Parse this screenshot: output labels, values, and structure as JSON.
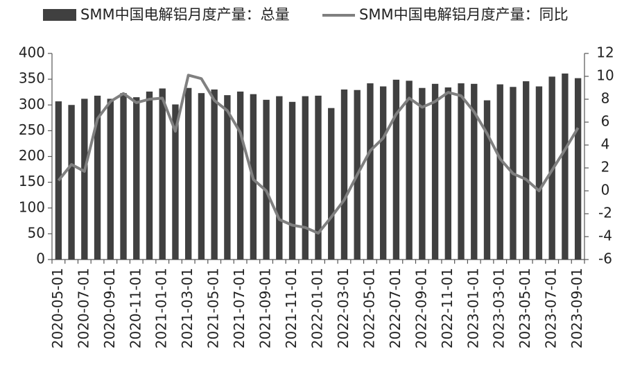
{
  "chart_data": {
    "type": "bar-line",
    "categories": [
      "2020-05-01",
      null,
      "2020-07-01",
      null,
      "2020-09-01",
      null,
      "2020-11-01",
      null,
      "2021-01-01",
      null,
      "2021-03-01",
      null,
      "2021-05-01",
      null,
      "2021-07-01",
      null,
      "2021-09-01",
      null,
      "2021-11-01",
      null,
      "2022-01-01",
      null,
      "2022-03-01",
      null,
      "2022-05-01",
      null,
      "2022-07-01",
      null,
      "2022-09-01",
      null,
      "2022-11-01",
      null,
      "2023-01-01",
      null,
      "2023-03-01",
      null,
      "2023-05-01",
      null,
      "2023-07-01",
      null,
      "2023-09-01"
    ],
    "series": [
      {
        "name": "SMM中国电解铝月度产量：总量",
        "type": "bar",
        "color": "#404040",
        "values": [
          307,
          300,
          312,
          318,
          312,
          323,
          315,
          326,
          332,
          301,
          333,
          323,
          330,
          319,
          326,
          321,
          310,
          317,
          306,
          317,
          318,
          294,
          330,
          329,
          342,
          336,
          349,
          347,
          333,
          341,
          334,
          342,
          341,
          309,
          340,
          335,
          346,
          336,
          355,
          361,
          352
        ]
      },
      {
        "name": "SMM中国电解铝月度产量：同比",
        "type": "line",
        "axis": "y2",
        "color": "#808080",
        "values": [
          0.9,
          2.3,
          1.7,
          6.3,
          7.8,
          8.5,
          7.7,
          8.0,
          8.1,
          5.2,
          10.1,
          9.8,
          7.9,
          7.0,
          5.1,
          1.0,
          0.0,
          -2.5,
          -3.0,
          -3.2,
          -3.7,
          -2.3,
          -0.8,
          1.4,
          3.5,
          4.6,
          6.7,
          8.1,
          7.3,
          7.8,
          8.6,
          8.3,
          6.9,
          5.0,
          2.8,
          1.5,
          1.0,
          0.0,
          1.8,
          3.6,
          5.5
        ]
      }
    ],
    "ylim": [
      0,
      400
    ],
    "yticks": [
      0,
      50,
      100,
      150,
      200,
      250,
      300,
      350,
      400
    ],
    "y2lim": [
      -6,
      12
    ],
    "y2ticks": [
      -6,
      -4,
      -2,
      0,
      2,
      4,
      6,
      8,
      10,
      12
    ],
    "grid": false,
    "legend": "top"
  }
}
